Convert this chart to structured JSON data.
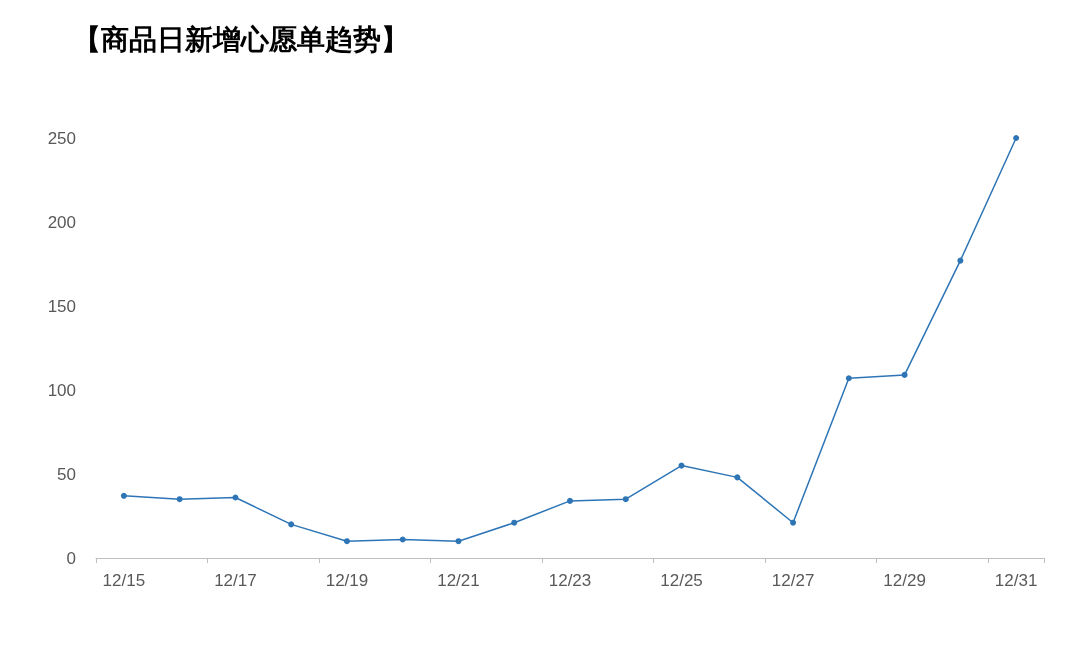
{
  "chart_data": {
    "type": "line",
    "title": "【商品日新增心愿单趋势】",
    "categories": [
      "12/15",
      null,
      "12/17",
      null,
      "12/19",
      null,
      "12/21",
      null,
      "12/23",
      null,
      "12/25",
      null,
      "12/27",
      null,
      "12/29",
      null,
      "12/31"
    ],
    "series": [
      {
        "color": "#2e75b6",
        "values": [
          37,
          35,
          36,
          20,
          10,
          11,
          10,
          21,
          34,
          35,
          55,
          48,
          21,
          107,
          109,
          177,
          250
        ]
      }
    ],
    "ylim": [
      0,
      250
    ],
    "yticks": [
      0,
      50,
      100,
      150,
      200,
      250
    ],
    "grid": false,
    "marker": "circle",
    "line_style": "solid"
  }
}
